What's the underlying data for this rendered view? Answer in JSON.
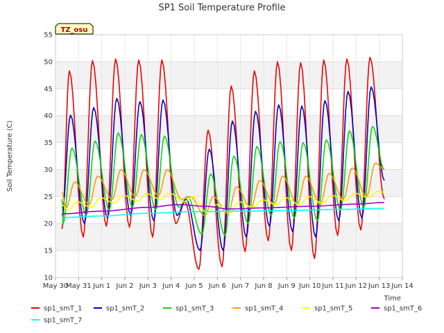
{
  "chart_data": {
    "type": "line",
    "title": "SP1 Soil Temperature Profile",
    "xlabel": "Time",
    "ylabel": "Soil Temperature (C)",
    "site_tag": "TZ_osu",
    "xlim": [
      0,
      15
    ],
    "ylim": [
      10,
      55
    ],
    "y_ticks": [
      10,
      15,
      20,
      25,
      30,
      35,
      40,
      45,
      50,
      55
    ],
    "x_ticks": [
      {
        "day": 0,
        "label": "May 30"
      },
      {
        "day": 1,
        "label": "May 31"
      },
      {
        "day": 2,
        "label": "Jun 1"
      },
      {
        "day": 3,
        "label": "Jun 2"
      },
      {
        "day": 4,
        "label": "Jun 3"
      },
      {
        "day": 5,
        "label": "Jun 4"
      },
      {
        "day": 6,
        "label": "Jun 5"
      },
      {
        "day": 7,
        "label": "Jun 6"
      },
      {
        "day": 8,
        "label": "Jun 7"
      },
      {
        "day": 9,
        "label": "Jun 8"
      },
      {
        "day": 10,
        "label": "Jun 9"
      },
      {
        "day": 11,
        "label": "Jun 10"
      },
      {
        "day": 12,
        "label": "Jun 11"
      },
      {
        "day": 13,
        "label": "Jun 12"
      },
      {
        "day": 14,
        "label": "Jun 13"
      },
      {
        "day": 15,
        "label": "Jun 14"
      }
    ],
    "grid": true,
    "legend_position": "bottom",
    "series": [
      {
        "name": "sp1_smT_1",
        "color": "#ee0000",
        "daily_max": [
          48.3,
          50.2,
          50.5,
          50.3,
          50.3,
          24.0,
          37.3,
          45.5,
          48.3,
          50.0,
          49.8,
          50.3,
          50.5,
          50.8
        ],
        "daily_min": [
          15.5,
          17.5,
          19.5,
          19.3,
          17.5,
          20.0,
          11.5,
          12.0,
          14.8,
          16.8,
          15.0,
          13.5,
          17.8,
          18.8
        ],
        "x_start": 0.28,
        "x_end": 14.22,
        "y_start": 19.0,
        "y_end": 24.5,
        "peak_phase": 0.55,
        "trough_phase": 0.15
      },
      {
        "name": "sp1_smT_2",
        "color": "#0000cc",
        "daily_max": [
          40.1,
          41.5,
          43.2,
          42.6,
          42.9,
          24.5,
          33.8,
          39.0,
          40.8,
          42.0,
          41.8,
          42.8,
          44.5,
          45.3
        ],
        "daily_min": [
          18.2,
          20.0,
          21.0,
          21.5,
          20.5,
          21.5,
          15.0,
          15.0,
          17.5,
          19.5,
          18.5,
          17.5,
          20.5,
          21.0
        ],
        "x_start": 0.28,
        "x_end": 14.22,
        "y_start": 21.5,
        "y_end": 28.0,
        "peak_phase": 0.6,
        "trough_phase": 0.2
      },
      {
        "name": "sp1_smT_3",
        "color": "#00dd00",
        "daily_max": [
          34.0,
          35.3,
          36.8,
          36.5,
          36.2,
          25.0,
          29.2,
          32.5,
          34.3,
          35.2,
          35.0,
          35.5,
          37.2,
          38.0
        ],
        "daily_min": [
          20.0,
          21.5,
          22.5,
          23.0,
          22.5,
          23.0,
          18.0,
          17.8,
          20.0,
          21.5,
          21.0,
          20.5,
          22.5,
          23.0
        ],
        "x_start": 0.28,
        "x_end": 14.22,
        "y_start": 24.5,
        "y_end": 30.0,
        "peak_phase": 0.66,
        "trough_phase": 0.28
      },
      {
        "name": "sp1_smT_4",
        "color": "#ff9900",
        "daily_max": [
          27.7,
          28.8,
          30.0,
          30.0,
          30.0,
          25.0,
          25.0,
          26.8,
          28.0,
          28.8,
          28.8,
          29.3,
          30.3,
          31.2
        ],
        "daily_min": [
          22.8,
          23.5,
          24.5,
          25.0,
          25.2,
          24.5,
          21.5,
          21.8,
          22.8,
          23.5,
          23.5,
          23.5,
          24.5,
          25.0
        ],
        "x_start": 0.28,
        "x_end": 14.22,
        "y_start": 25.8,
        "y_end": 30.0,
        "peak_phase": 0.78,
        "trough_phase": 0.4
      },
      {
        "name": "sp1_smT_5",
        "color": "#ffff00",
        "daily_max": [
          24.0,
          24.8,
          25.2,
          25.5,
          25.6,
          25.0,
          23.5,
          24.0,
          24.4,
          24.8,
          25.0,
          25.2,
          25.6,
          26.0
        ],
        "daily_min": [
          22.5,
          23.0,
          23.8,
          24.2,
          24.5,
          24.0,
          22.0,
          22.0,
          23.0,
          23.5,
          23.5,
          23.8,
          24.2,
          24.8
        ],
        "x_start": 0.28,
        "x_end": 14.22,
        "y_start": 23.5,
        "y_end": 25.8,
        "peak_phase": 0.9,
        "trough_phase": 0.5
      },
      {
        "name": "sp1_smT_6",
        "color": "#9900cc",
        "daily_max": [],
        "daily_min": [],
        "x_start": 0.28,
        "x_end": 14.22,
        "y_start": 21.8,
        "y_end": 23.9,
        "trend": [
          [
            0.28,
            21.8
          ],
          [
            2.0,
            22.3
          ],
          [
            4.0,
            23.0
          ],
          [
            5.3,
            23.5
          ],
          [
            6.5,
            23.2
          ],
          [
            7.5,
            22.7
          ],
          [
            9.0,
            22.9
          ],
          [
            11.0,
            23.2
          ],
          [
            13.0,
            23.6
          ],
          [
            14.22,
            23.9
          ]
        ]
      },
      {
        "name": "sp1_smT_7",
        "color": "#00ffff",
        "daily_max": [],
        "daily_min": [],
        "x_start": 0.28,
        "x_end": 14.22,
        "y_start": 21.1,
        "y_end": 22.8,
        "trend": [
          [
            0.28,
            21.1
          ],
          [
            2.0,
            21.4
          ],
          [
            4.0,
            21.9
          ],
          [
            6.0,
            22.2
          ],
          [
            8.0,
            22.3
          ],
          [
            10.0,
            22.4
          ],
          [
            12.0,
            22.6
          ],
          [
            14.22,
            22.8
          ]
        ]
      }
    ]
  }
}
